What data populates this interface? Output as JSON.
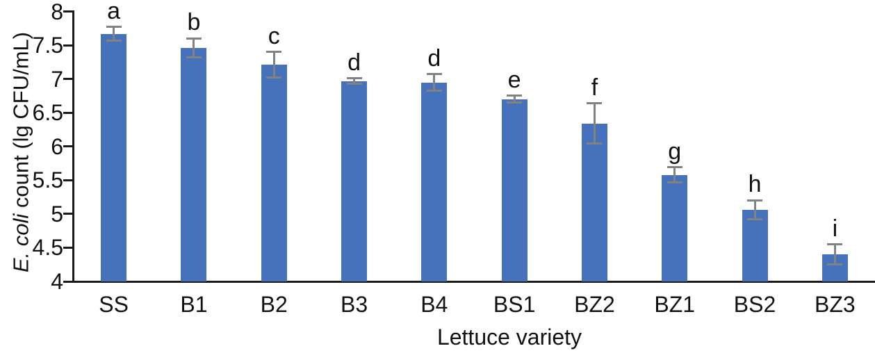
{
  "chart_data": {
    "type": "bar",
    "title": "",
    "xlabel": "Lettuce variety",
    "ylabel_italic": "E. coli",
    "ylabel_rest": " count (lg CFU/mL)",
    "categories": [
      "SS",
      "B1",
      "B2",
      "B3",
      "B4",
      "BS1",
      "BZ2",
      "BZ1",
      "BS2",
      "BZ3"
    ],
    "series": [
      {
        "name": "E. coli count",
        "values": [
          7.67,
          7.46,
          7.21,
          6.97,
          6.95,
          6.7,
          6.34,
          5.58,
          5.06,
          4.4
        ],
        "errors": [
          0.1,
          0.14,
          0.19,
          0.04,
          0.12,
          0.05,
          0.3,
          0.11,
          0.14,
          0.15
        ]
      }
    ],
    "significance_letters": [
      "a",
      "b",
      "c",
      "d",
      "d",
      "e",
      "f",
      "g",
      "h",
      "i"
    ],
    "ylim": [
      4,
      8
    ],
    "yticks": [
      4,
      4.5,
      5,
      5.5,
      6,
      6.5,
      7,
      7.5,
      8
    ],
    "ytick_labels": [
      "4",
      "4.5",
      "5",
      "5.5",
      "6",
      "6.5",
      "7",
      "7.5",
      "8"
    ],
    "grid": false,
    "legend": "none",
    "colors": {
      "bar": "#4672bc",
      "error_bar": "#828282",
      "axis": "#1a1a1a",
      "text": "#111111"
    }
  }
}
